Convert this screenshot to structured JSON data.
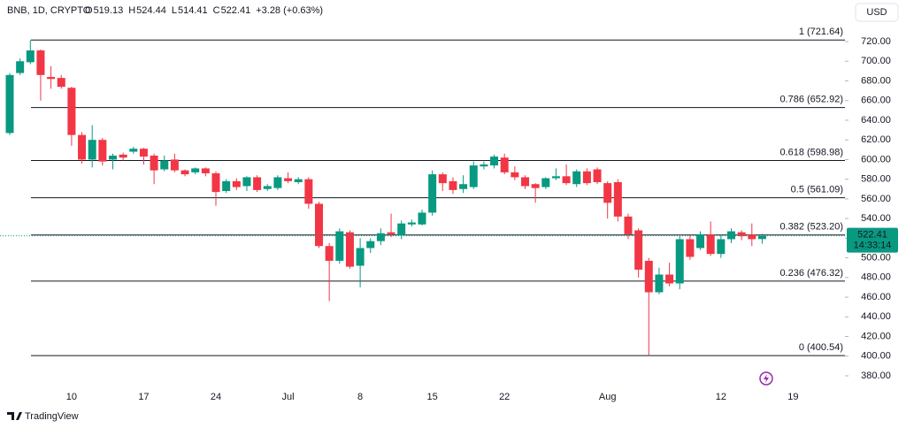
{
  "chart_data": {
    "type": "candlestick",
    "symbol": "BNB, 1D, CRYPTO",
    "header_labels": [
      "O",
      "H",
      "L",
      "C"
    ],
    "header_values": [
      "519.13",
      "524.44",
      "514.41",
      "522.41"
    ],
    "change": "+3.28 (+0.63%)",
    "currency": "USD",
    "brand": "TradingView",
    "countdown": "14:33:14",
    "last_price": 522.41,
    "up_color": "#089981",
    "down_color": "#f23645",
    "categories": [
      null,
      null,
      null,
      null,
      null,
      null,
      "10",
      null,
      null,
      null,
      null,
      null,
      null,
      "17",
      null,
      null,
      null,
      null,
      null,
      null,
      "24",
      null,
      null,
      null,
      null,
      null,
      null,
      "Jul",
      null,
      null,
      null,
      null,
      null,
      null,
      "8",
      null,
      null,
      null,
      null,
      null,
      null,
      "15",
      null,
      null,
      null,
      null,
      null,
      null,
      "22",
      null,
      null,
      null,
      null,
      null,
      null,
      null,
      null,
      null,
      "Aug",
      null,
      null,
      null,
      null,
      null,
      null,
      null,
      null,
      null,
      null,
      "12",
      null,
      null,
      null,
      null,
      null,
      null,
      "19"
    ],
    "open": [
      627,
      688,
      699,
      711,
      684,
      683,
      673,
      625,
      600,
      620,
      600,
      605,
      608,
      611,
      604,
      590,
      600,
      589,
      587,
      591,
      586,
      568,
      578,
      573,
      582,
      570,
      571,
      581,
      577,
      580,
      555,
      512,
      497,
      526,
      492,
      510,
      517,
      526,
      523,
      534,
      534,
      546,
      585,
      578,
      570,
      572,
      593,
      594,
      602,
      587,
      582,
      575,
      572,
      581,
      583,
      575,
      588,
      590,
      576,
      577,
      542,
      528,
      497,
      465,
      483,
      474,
      519,
      510,
      524,
      504,
      519,
      526,
      524,
      519.13,
      null,
      null,
      null
    ],
    "high": [
      688,
      703,
      721.64,
      712,
      695,
      686,
      674,
      628,
      635,
      622,
      606,
      607,
      613,
      612,
      606,
      604,
      606,
      590,
      592,
      592,
      588,
      580,
      581,
      583,
      584,
      575,
      584,
      587,
      582,
      582,
      557,
      515,
      530,
      528,
      520,
      520,
      530,
      545,
      538,
      539,
      549,
      589,
      587,
      582,
      584,
      598,
      598,
      605,
      606,
      593,
      584,
      576,
      582,
      591,
      595,
      590,
      591,
      592,
      578,
      580,
      545,
      530,
      500,
      490,
      495,
      522,
      523,
      527,
      537,
      524,
      530,
      528,
      535,
      524.44,
      null,
      null,
      null
    ],
    "low": [
      625,
      686,
      697,
      660,
      672,
      672,
      614,
      596,
      592,
      594,
      590,
      599,
      606,
      595,
      575,
      588,
      587,
      583,
      585,
      583,
      553,
      566,
      569,
      568,
      567,
      568,
      569,
      576,
      575,
      550,
      510,
      456,
      494,
      489,
      470,
      505,
      513,
      521,
      519,
      532,
      533,
      543,
      568,
      565,
      566,
      570,
      590,
      591,
      585,
      579,
      570,
      556,
      570,
      579,
      574,
      572,
      574,
      575,
      540,
      537,
      519,
      480,
      400.54,
      463,
      471,
      468,
      498,
      508,
      502,
      500,
      515,
      518,
      512,
      514.41,
      null,
      null,
      null
    ],
    "close": [
      686,
      700,
      711,
      686,
      682,
      674,
      625,
      600,
      620,
      598,
      604,
      602,
      611,
      603,
      589,
      599,
      589,
      585,
      591,
      586,
      567,
      578,
      572,
      582,
      569,
      573,
      582,
      578,
      580,
      555,
      512,
      497,
      527,
      491,
      510,
      517,
      525,
      524,
      535,
      536,
      546,
      585,
      576,
      569,
      575,
      594,
      595,
      603,
      587,
      582,
      573,
      571,
      581,
      583,
      576,
      588,
      576,
      577,
      556,
      542,
      524,
      488,
      465,
      483,
      474,
      519,
      501,
      524,
      504,
      519,
      527,
      522,
      519,
      522.41,
      null,
      null,
      null
    ],
    "ylim": [
      366.5,
      762.3
    ],
    "yticks": [
      {
        "value": 380,
        "label": "380.00"
      },
      {
        "value": 400,
        "label": "400.00"
      },
      {
        "value": 420,
        "label": "420.00"
      },
      {
        "value": 440,
        "label": "440.00"
      },
      {
        "value": 460,
        "label": "460.00"
      },
      {
        "value": 480,
        "label": "480.00"
      },
      {
        "value": 500,
        "label": "500.00"
      },
      {
        "value": 520,
        "label": "520.00"
      },
      {
        "value": 540,
        "label": "540.00"
      },
      {
        "value": 560,
        "label": "560.00"
      },
      {
        "value": 580,
        "label": "580.00"
      },
      {
        "value": 600,
        "label": "600.00"
      },
      {
        "value": 620,
        "label": "620.00"
      },
      {
        "value": 640,
        "label": "640.00"
      },
      {
        "value": 660,
        "label": "660.00"
      },
      {
        "value": 680,
        "label": "680.00"
      },
      {
        "value": 700,
        "label": "700.00"
      },
      {
        "value": 720,
        "label": "720.00"
      }
    ],
    "fib_levels": [
      {
        "value": 721.64,
        "label": "1 (721.64)"
      },
      {
        "value": 652.92,
        "label": "0.786 (652.92)"
      },
      {
        "value": 598.98,
        "label": "0.618 (598.98)"
      },
      {
        "value": 561.09,
        "label": "0.5 (561.09)"
      },
      {
        "value": 523.2,
        "label": "0.382 (523.20)"
      },
      {
        "value": 476.32,
        "label": "0.236 (476.32)"
      },
      {
        "value": 400.54,
        "label": "0 (400.54)"
      }
    ]
  }
}
